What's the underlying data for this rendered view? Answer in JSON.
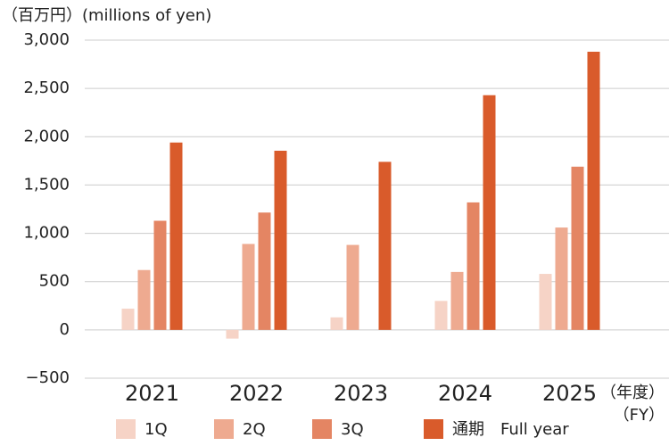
{
  "chart_data": {
    "type": "bar",
    "title": "（百万円）(millions of yen)",
    "x_unit": [
      "（年度）",
      "（FY）"
    ],
    "categories": [
      "2021",
      "2022",
      "2023",
      "2024",
      "2025"
    ],
    "series": [
      {
        "name": "1Q",
        "color": "#f6d3c6",
        "values": [
          220,
          -90,
          130,
          300,
          580
        ]
      },
      {
        "name": "2Q",
        "color": "#eeaa90",
        "values": [
          620,
          890,
          880,
          600,
          1060
        ]
      },
      {
        "name": "3Q",
        "color": "#e48563",
        "values": [
          1130,
          1215,
          null,
          1320,
          1690
        ]
      },
      {
        "name": "通期　Full year",
        "color": "#d95b2b",
        "values": [
          1940,
          1855,
          1740,
          2430,
          2880
        ]
      }
    ],
    "ylim": [
      -500,
      3000
    ],
    "yticks": [
      {
        "value": -500,
        "label": "−500"
      },
      0,
      500,
      {
        "value": 1000,
        "label": "1,000"
      },
      {
        "value": 1500,
        "label": "1,500"
      },
      {
        "value": 2000,
        "label": "2,000"
      },
      {
        "value": 2500,
        "label": "2,500"
      },
      {
        "value": 3000,
        "label": "3,000"
      }
    ],
    "grid": true
  }
}
